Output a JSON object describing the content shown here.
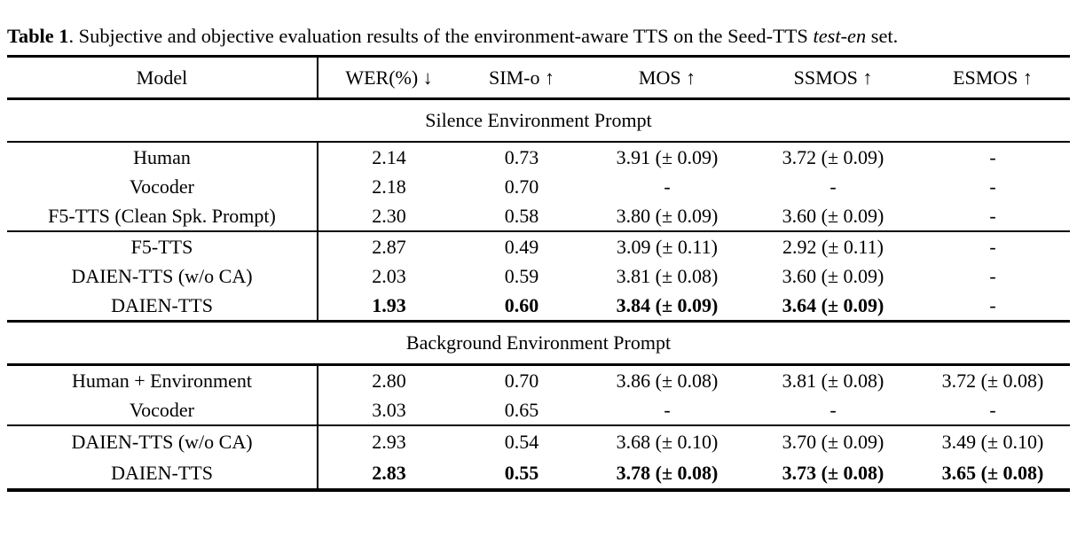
{
  "caption": {
    "label": "Table 1",
    "body": ". Subjective and objective evaluation results of the environment-aware TTS on the Seed-TTS ",
    "italic": "test-en",
    "tail": " set."
  },
  "table": {
    "columns": [
      "Model",
      "WER(%) ↓",
      "SIM-o ↑",
      "MOS ↑",
      "SSMOS ↑",
      "ESMOS ↑"
    ],
    "sections": [
      {
        "title": "Silence Environment Prompt",
        "groups": [
          {
            "rows": [
              {
                "model": "Human",
                "bold": false,
                "values": [
                  "2.14",
                  "0.73",
                  "3.91 (± 0.09)",
                  "3.72 (± 0.09)",
                  "-"
                ]
              },
              {
                "model": "Vocoder",
                "bold": false,
                "values": [
                  "2.18",
                  "0.70",
                  "-",
                  "-",
                  "-"
                ]
              },
              {
                "model": "F5-TTS (Clean Spk. Prompt)",
                "bold": false,
                "values": [
                  "2.30",
                  "0.58",
                  "3.80 (± 0.09)",
                  "3.60 (± 0.09)",
                  "-"
                ]
              }
            ]
          },
          {
            "rows": [
              {
                "model": "F5-TTS",
                "bold": false,
                "values": [
                  "2.87",
                  "0.49",
                  "3.09 (± 0.11)",
                  "2.92 (± 0.11)",
                  "-"
                ]
              },
              {
                "model": "DAIEN-TTS (w/o CA)",
                "bold": false,
                "values": [
                  "2.03",
                  "0.59",
                  "3.81 (± 0.08)",
                  "3.60 (± 0.09)",
                  "-"
                ]
              },
              {
                "model": "DAIEN-TTS",
                "bold": true,
                "values": [
                  "1.93",
                  "0.60",
                  "3.84 (± 0.09)",
                  "3.64 (± 0.09)",
                  "-"
                ]
              }
            ]
          }
        ]
      },
      {
        "title": "Background Environment Prompt",
        "groups": [
          {
            "rows": [
              {
                "model": "Human + Environment",
                "bold": false,
                "values": [
                  "2.80",
                  "0.70",
                  "3.86 (± 0.08)",
                  "3.81 (± 0.08)",
                  "3.72 (± 0.08)"
                ]
              },
              {
                "model": "Vocoder",
                "bold": false,
                "values": [
                  "3.03",
                  "0.65",
                  "-",
                  "-",
                  "-"
                ]
              }
            ]
          },
          {
            "rows": [
              {
                "model": "DAIEN-TTS (w/o CA)",
                "bold": false,
                "values": [
                  "2.93",
                  "0.54",
                  "3.68 (± 0.10)",
                  "3.70 (± 0.09)",
                  "3.49 (± 0.10)"
                ]
              },
              {
                "model": "DAIEN-TTS",
                "bold": true,
                "values": [
                  "2.83",
                  "0.55",
                  "3.78 (± 0.08)",
                  "3.73 (± 0.08)",
                  "3.65 (± 0.08)"
                ]
              }
            ]
          }
        ]
      }
    ],
    "colors": {
      "text": "#000000",
      "rule": "#000000",
      "background": "#ffffff"
    }
  }
}
